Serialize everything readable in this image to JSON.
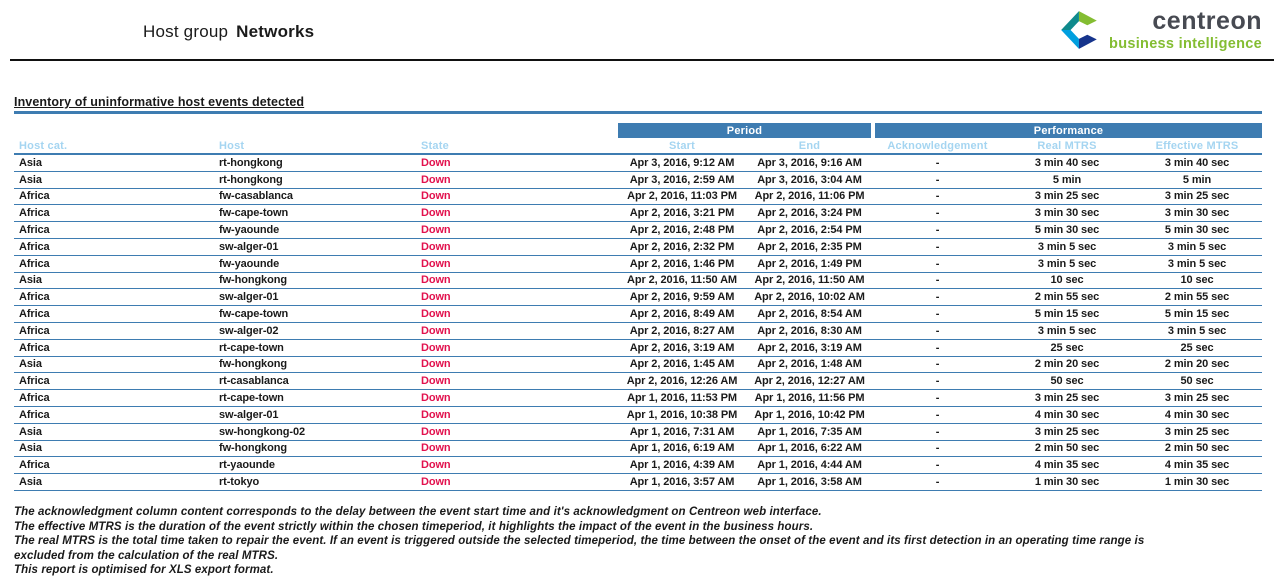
{
  "header": {
    "title_prefix": "Host group",
    "title_name": "Networks"
  },
  "logo": {
    "name": "centreon",
    "tagline": "business intelligence"
  },
  "section": {
    "title": "Inventory of uninformative host events detected"
  },
  "table": {
    "group_headers": {
      "period": "Period",
      "performance": "Performance"
    },
    "columns": [
      "Host cat.",
      "Host",
      "State",
      "Start",
      "End",
      "Acknowledgement",
      "Real MTRS",
      "Effective MTRS"
    ],
    "rows": [
      {
        "host_cat": "Asia",
        "host": "rt-hongkong",
        "state": "Down",
        "start": "Apr 3, 2016, 9:12 AM",
        "end": "Apr 3, 2016, 9:16 AM",
        "ack": "-",
        "real_mtrs": "3 min 40 sec",
        "effective_mtrs": "3 min 40 sec"
      },
      {
        "host_cat": "Asia",
        "host": "rt-hongkong",
        "state": "Down",
        "start": "Apr 3, 2016, 2:59 AM",
        "end": "Apr 3, 2016, 3:04 AM",
        "ack": "-",
        "real_mtrs": "5 min",
        "effective_mtrs": "5 min"
      },
      {
        "host_cat": "Africa",
        "host": "fw-casablanca",
        "state": "Down",
        "start": "Apr 2, 2016, 11:03 PM",
        "end": "Apr 2, 2016, 11:06 PM",
        "ack": "-",
        "real_mtrs": "3 min 25 sec",
        "effective_mtrs": "3 min 25 sec"
      },
      {
        "host_cat": "Africa",
        "host": "fw-cape-town",
        "state": "Down",
        "start": "Apr 2, 2016, 3:21 PM",
        "end": "Apr 2, 2016, 3:24 PM",
        "ack": "-",
        "real_mtrs": "3 min 30 sec",
        "effective_mtrs": "3 min 30 sec"
      },
      {
        "host_cat": "Africa",
        "host": "fw-yaounde",
        "state": "Down",
        "start": "Apr 2, 2016, 2:48 PM",
        "end": "Apr 2, 2016, 2:54 PM",
        "ack": "-",
        "real_mtrs": "5 min 30 sec",
        "effective_mtrs": "5 min 30 sec"
      },
      {
        "host_cat": "Africa",
        "host": "sw-alger-01",
        "state": "Down",
        "start": "Apr 2, 2016, 2:32 PM",
        "end": "Apr 2, 2016, 2:35 PM",
        "ack": "-",
        "real_mtrs": "3 min 5 sec",
        "effective_mtrs": "3 min 5 sec"
      },
      {
        "host_cat": "Africa",
        "host": "fw-yaounde",
        "state": "Down",
        "start": "Apr 2, 2016, 1:46 PM",
        "end": "Apr 2, 2016, 1:49 PM",
        "ack": "-",
        "real_mtrs": "3 min 5 sec",
        "effective_mtrs": "3 min 5 sec"
      },
      {
        "host_cat": "Asia",
        "host": "fw-hongkong",
        "state": "Down",
        "start": "Apr 2, 2016, 11:50 AM",
        "end": "Apr 2, 2016, 11:50 AM",
        "ack": "-",
        "real_mtrs": "10 sec",
        "effective_mtrs": "10 sec"
      },
      {
        "host_cat": "Africa",
        "host": "sw-alger-01",
        "state": "Down",
        "start": "Apr 2, 2016, 9:59 AM",
        "end": "Apr 2, 2016, 10:02 AM",
        "ack": "-",
        "real_mtrs": "2 min 55 sec",
        "effective_mtrs": "2 min 55 sec"
      },
      {
        "host_cat": "Africa",
        "host": "fw-cape-town",
        "state": "Down",
        "start": "Apr 2, 2016, 8:49 AM",
        "end": "Apr 2, 2016, 8:54 AM",
        "ack": "-",
        "real_mtrs": "5 min 15 sec",
        "effective_mtrs": "5 min 15 sec"
      },
      {
        "host_cat": "Africa",
        "host": "sw-alger-02",
        "state": "Down",
        "start": "Apr 2, 2016, 8:27 AM",
        "end": "Apr 2, 2016, 8:30 AM",
        "ack": "-",
        "real_mtrs": "3 min 5 sec",
        "effective_mtrs": "3 min 5 sec"
      },
      {
        "host_cat": "Africa",
        "host": "rt-cape-town",
        "state": "Down",
        "start": "Apr 2, 2016, 3:19 AM",
        "end": "Apr 2, 2016, 3:19 AM",
        "ack": "-",
        "real_mtrs": "25 sec",
        "effective_mtrs": "25 sec"
      },
      {
        "host_cat": "Asia",
        "host": "fw-hongkong",
        "state": "Down",
        "start": "Apr 2, 2016, 1:45 AM",
        "end": "Apr 2, 2016, 1:48 AM",
        "ack": "-",
        "real_mtrs": "2 min 20 sec",
        "effective_mtrs": "2 min 20 sec"
      },
      {
        "host_cat": "Africa",
        "host": "rt-casablanca",
        "state": "Down",
        "start": "Apr 2, 2016, 12:26 AM",
        "end": "Apr 2, 2016, 12:27 AM",
        "ack": "-",
        "real_mtrs": "50 sec",
        "effective_mtrs": "50 sec"
      },
      {
        "host_cat": "Africa",
        "host": "rt-cape-town",
        "state": "Down",
        "start": "Apr 1, 2016, 11:53 PM",
        "end": "Apr 1, 2016, 11:56 PM",
        "ack": "-",
        "real_mtrs": "3 min 25 sec",
        "effective_mtrs": "3 min 25 sec"
      },
      {
        "host_cat": "Africa",
        "host": "sw-alger-01",
        "state": "Down",
        "start": "Apr 1, 2016, 10:38 PM",
        "end": "Apr 1, 2016, 10:42 PM",
        "ack": "-",
        "real_mtrs": "4 min 30 sec",
        "effective_mtrs": "4 min 30 sec"
      },
      {
        "host_cat": "Asia",
        "host": "sw-hongkong-02",
        "state": "Down",
        "start": "Apr 1, 2016, 7:31 AM",
        "end": "Apr 1, 2016, 7:35 AM",
        "ack": "-",
        "real_mtrs": "3 min 25 sec",
        "effective_mtrs": "3 min 25 sec"
      },
      {
        "host_cat": "Asia",
        "host": "fw-hongkong",
        "state": "Down",
        "start": "Apr 1, 2016, 6:19 AM",
        "end": "Apr 1, 2016, 6:22 AM",
        "ack": "-",
        "real_mtrs": "2 min 50 sec",
        "effective_mtrs": "2 min 50 sec"
      },
      {
        "host_cat": "Africa",
        "host": "rt-yaounde",
        "state": "Down",
        "start": "Apr 1, 2016, 4:39 AM",
        "end": "Apr 1, 2016, 4:44 AM",
        "ack": "-",
        "real_mtrs": "4 min 35 sec",
        "effective_mtrs": "4 min 35 sec"
      },
      {
        "host_cat": "Asia",
        "host": "rt-tokyo",
        "state": "Down",
        "start": "Apr 1, 2016, 3:57 AM",
        "end": "Apr 1, 2016, 3:58 AM",
        "ack": "-",
        "real_mtrs": "1 min 30 sec",
        "effective_mtrs": "1 min 30 sec"
      }
    ]
  },
  "footnotes": [
    "The acknowledgment column content corresponds to the delay between the event start time and it's acknowledgment on Centreon web interface.",
    "The effective MTRS is the duration of the event strictly within the chosen timeperiod, it highlights the impact of the event in the business hours.",
    "The real MTRS is the total time taken to repair the event. If an event is triggered outside the selected timeperiod, the time between the onset of the event and its first detection in an operating time range  is excluded from the calculation of the real MTRS.",
    "This report is optimised for XLS export format."
  ],
  "colors": {
    "accent_blue": "#3e7cb1",
    "subheader_light_blue": "#a5d5f1",
    "state_down_red": "#e2114d",
    "logo_green": "#84bd32",
    "logo_teal": "#0f8a8c",
    "logo_light_blue": "#009fdf",
    "logo_dark_blue": "#16348c",
    "logo_gray": "#474a52",
    "text": "#1a1a1a"
  }
}
